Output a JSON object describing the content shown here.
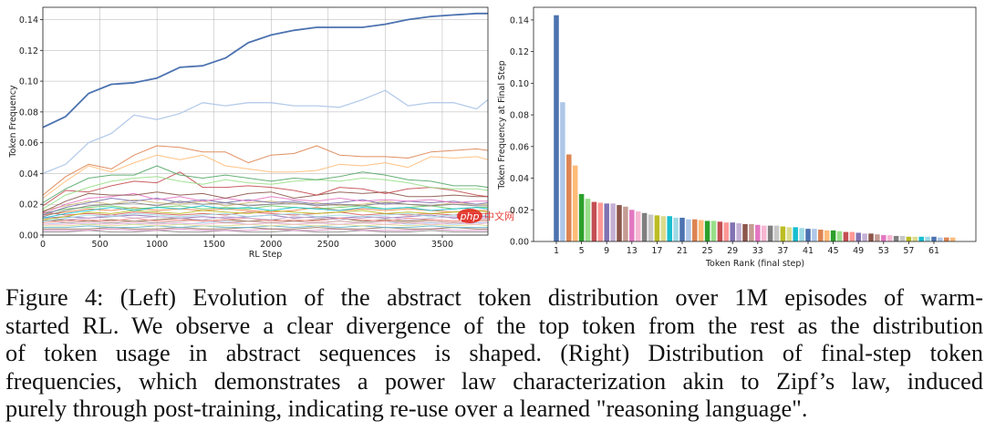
{
  "figure": {
    "left_chart": {
      "type": "line",
      "xlabel": "RL Step",
      "ylabel": "Token Frequency",
      "xlim": [
        0,
        3900
      ],
      "ylim": [
        0,
        0.148
      ],
      "x_ticks": [
        "0",
        "500",
        "1000",
        "1500",
        "2000",
        "2500",
        "3000",
        "3500"
      ],
      "y_ticks": [
        "0.00",
        "0.02",
        "0.04",
        "0.06",
        "0.08",
        "0.10",
        "0.12",
        "0.14"
      ],
      "grid": true
    },
    "right_chart": {
      "type": "bar",
      "xlabel": "Token Rank (final step)",
      "ylabel": "Token Frequency at Final Step",
      "ylim": [
        0,
        0.148
      ],
      "x_ticks": [
        "1",
        "5",
        "9",
        "13",
        "17",
        "21",
        "25",
        "29",
        "33",
        "37",
        "41",
        "45",
        "49",
        "53",
        "57",
        "61"
      ],
      "y_ticks": [
        "0.00",
        "0.02",
        "0.04",
        "0.06",
        "0.08",
        "0.10",
        "0.12",
        "0.14"
      ],
      "grid": false
    },
    "watermark": {
      "logo_text": "php",
      "site_text": "中文网"
    }
  },
  "chart_data": [
    {
      "type": "line",
      "xlabel": "RL Step",
      "ylabel": "Token Frequency",
      "xlim": [
        0,
        3900
      ],
      "ylim": [
        0,
        0.148
      ],
      "x": [
        0,
        200,
        400,
        600,
        800,
        1000,
        1200,
        1400,
        1600,
        1800,
        2000,
        2200,
        2400,
        2600,
        2800,
        3000,
        3200,
        3400,
        3600,
        3800,
        3900
      ],
      "series": [
        {
          "color": "#4c72b0",
          "values": [
            0.07,
            0.077,
            0.092,
            0.098,
            0.099,
            0.102,
            0.109,
            0.11,
            0.115,
            0.125,
            0.13,
            0.133,
            0.135,
            0.135,
            0.135,
            0.137,
            0.14,
            0.142,
            0.143,
            0.144,
            0.144
          ]
        },
        {
          "color": "#aec7e8",
          "values": [
            0.04,
            0.046,
            0.06,
            0.066,
            0.078,
            0.075,
            0.079,
            0.086,
            0.084,
            0.086,
            0.086,
            0.084,
            0.084,
            0.083,
            0.088,
            0.094,
            0.084,
            0.086,
            0.086,
            0.082,
            0.088
          ]
        },
        {
          "color": "#dd8452",
          "values": [
            0.026,
            0.038,
            0.046,
            0.043,
            0.052,
            0.058,
            0.057,
            0.054,
            0.054,
            0.047,
            0.052,
            0.053,
            0.058,
            0.052,
            0.051,
            0.051,
            0.05,
            0.054,
            0.055,
            0.056,
            0.055
          ]
        },
        {
          "color": "#ffbb78",
          "values": [
            0.024,
            0.035,
            0.045,
            0.041,
            0.047,
            0.052,
            0.049,
            0.052,
            0.045,
            0.043,
            0.041,
            0.041,
            0.042,
            0.046,
            0.045,
            0.047,
            0.044,
            0.051,
            0.05,
            0.051,
            0.049
          ]
        },
        {
          "color": "#55a868",
          "values": [
            0.021,
            0.03,
            0.037,
            0.039,
            0.039,
            0.045,
            0.039,
            0.037,
            0.039,
            0.037,
            0.035,
            0.037,
            0.036,
            0.038,
            0.041,
            0.039,
            0.036,
            0.035,
            0.032,
            0.032,
            0.031
          ]
        },
        {
          "color": "#98df8a",
          "values": [
            0.017,
            0.026,
            0.031,
            0.035,
            0.037,
            0.038,
            0.035,
            0.033,
            0.036,
            0.034,
            0.033,
            0.035,
            0.036,
            0.035,
            0.037,
            0.036,
            0.034,
            0.031,
            0.03,
            0.03,
            0.029
          ]
        },
        {
          "color": "#c44e52",
          "values": [
            0.019,
            0.029,
            0.028,
            0.032,
            0.035,
            0.034,
            0.041,
            0.031,
            0.031,
            0.032,
            0.031,
            0.029,
            0.026,
            0.031,
            0.03,
            0.027,
            0.03,
            0.031,
            0.029,
            0.026,
            0.025
          ]
        },
        {
          "color": "#8c564b",
          "values": [
            0.015,
            0.022,
            0.027,
            0.026,
            0.026,
            0.028,
            0.026,
            0.027,
            0.024,
            0.027,
            0.028,
            0.024,
            0.026,
            0.028,
            0.027,
            0.028,
            0.025,
            0.025,
            0.026,
            0.025,
            0.025
          ]
        },
        {
          "color": "#e377c2",
          "values": [
            0.014,
            0.02,
            0.024,
            0.025,
            0.027,
            0.023,
            0.025,
            0.022,
            0.024,
            0.022,
            0.025,
            0.023,
            0.022,
            0.024,
            0.022,
            0.023,
            0.022,
            0.023,
            0.021,
            0.022,
            0.022
          ]
        },
        {
          "color": "#8172b2",
          "values": [
            0.013,
            0.018,
            0.021,
            0.024,
            0.022,
            0.024,
            0.021,
            0.023,
            0.021,
            0.023,
            0.021,
            0.022,
            0.02,
            0.021,
            0.023,
            0.02,
            0.022,
            0.021,
            0.022,
            0.02,
            0.021
          ]
        },
        {
          "color": "#7f7f7f",
          "values": [
            0.012,
            0.016,
            0.019,
            0.02,
            0.021,
            0.019,
            0.022,
            0.02,
            0.021,
            0.019,
            0.02,
            0.021,
            0.019,
            0.02,
            0.019,
            0.021,
            0.02,
            0.019,
            0.02,
            0.019,
            0.019
          ]
        },
        {
          "color": "#17becf",
          "values": [
            0.011,
            0.014,
            0.016,
            0.018,
            0.016,
            0.018,
            0.017,
            0.019,
            0.017,
            0.018,
            0.016,
            0.018,
            0.017,
            0.016,
            0.018,
            0.017,
            0.018,
            0.016,
            0.017,
            0.018,
            0.017
          ]
        },
        {
          "color": "#bcbd22",
          "values": [
            0.01,
            0.012,
            0.015,
            0.014,
            0.016,
            0.015,
            0.014,
            0.016,
            0.015,
            0.014,
            0.016,
            0.015,
            0.014,
            0.015,
            0.016,
            0.014,
            0.015,
            0.014,
            0.015,
            0.016,
            0.015
          ]
        },
        {
          "color": "#9edae5",
          "values": [
            0.009,
            0.011,
            0.013,
            0.012,
            0.014,
            0.013,
            0.012,
            0.013,
            0.014,
            0.012,
            0.013,
            0.014,
            0.012,
            0.013,
            0.012,
            0.013,
            0.014,
            0.012,
            0.013,
            0.012,
            0.013
          ]
        },
        {
          "color": "#c5b0d5",
          "values": [
            0.012,
            0.01,
            0.011,
            0.013,
            0.011,
            0.012,
            0.011,
            0.01,
            0.012,
            0.011,
            0.01,
            0.012,
            0.011,
            0.01,
            0.011,
            0.012,
            0.01,
            0.011,
            0.012,
            0.011,
            0.011
          ]
        },
        {
          "color": "#ff9896",
          "values": [
            0.008,
            0.009,
            0.01,
            0.009,
            0.011,
            0.009,
            0.01,
            0.009,
            0.01,
            0.011,
            0.009,
            0.01,
            0.009,
            0.011,
            0.01,
            0.009,
            0.011,
            0.01,
            0.009,
            0.01,
            0.01
          ]
        },
        {
          "color": "#c49c94",
          "values": [
            0.01,
            0.008,
            0.009,
            0.008,
            0.009,
            0.008,
            0.009,
            0.01,
            0.008,
            0.009,
            0.008,
            0.009,
            0.008,
            0.009,
            0.008,
            0.009,
            0.008,
            0.009,
            0.008,
            0.009,
            0.009
          ]
        },
        {
          "color": "#f7b6d2",
          "values": [
            0.007,
            0.007,
            0.008,
            0.007,
            0.008,
            0.007,
            0.008,
            0.007,
            0.008,
            0.007,
            0.008,
            0.007,
            0.008,
            0.007,
            0.008,
            0.007,
            0.008,
            0.007,
            0.008,
            0.007,
            0.008
          ]
        },
        {
          "color": "#dbdb8d",
          "values": [
            0.006,
            0.006,
            0.007,
            0.006,
            0.007,
            0.006,
            0.007,
            0.006,
            0.006,
            0.007,
            0.006,
            0.007,
            0.006,
            0.007,
            0.006,
            0.007,
            0.006,
            0.007,
            0.006,
            0.007,
            0.006
          ]
        },
        {
          "color": "#64b5cd",
          "values": [
            0.005,
            0.005,
            0.006,
            0.005,
            0.005,
            0.006,
            0.005,
            0.006,
            0.005,
            0.005,
            0.006,
            0.005,
            0.006,
            0.005,
            0.006,
            0.005,
            0.005,
            0.006,
            0.005,
            0.005,
            0.005
          ]
        },
        {
          "color": "#937860",
          "values": [
            0.004,
            0.004,
            0.004,
            0.005,
            0.004,
            0.004,
            0.005,
            0.004,
            0.004,
            0.005,
            0.004,
            0.004,
            0.005,
            0.004,
            0.004,
            0.005,
            0.004,
            0.004,
            0.005,
            0.004,
            0.004
          ]
        },
        {
          "color": "#da8bc3",
          "values": [
            0.003,
            0.003,
            0.003,
            0.004,
            0.003,
            0.003,
            0.004,
            0.003,
            0.003,
            0.003,
            0.004,
            0.003,
            0.003,
            0.004,
            0.003,
            0.003,
            0.003,
            0.004,
            0.003,
            0.003,
            0.003
          ]
        },
        {
          "color": "#8c8c8c",
          "values": [
            0.002,
            0.002,
            0.003,
            0.002,
            0.002,
            0.003,
            0.002,
            0.002,
            0.003,
            0.002,
            0.002,
            0.003,
            0.002,
            0.002,
            0.003,
            0.002,
            0.002,
            0.003,
            0.002,
            0.002,
            0.002
          ]
        },
        {
          "color": "#ccb974",
          "values": [
            0.016,
            0.019,
            0.022,
            0.02,
            0.023,
            0.021,
            0.02,
            0.022,
            0.019,
            0.021,
            0.022,
            0.02,
            0.021,
            0.019,
            0.02,
            0.022,
            0.02,
            0.019,
            0.021,
            0.02,
            0.02
          ]
        },
        {
          "color": "#6acc64",
          "values": [
            0.014,
            0.017,
            0.018,
            0.019,
            0.017,
            0.018,
            0.019,
            0.017,
            0.018,
            0.017,
            0.019,
            0.018,
            0.017,
            0.018,
            0.019,
            0.017,
            0.018,
            0.019,
            0.017,
            0.018,
            0.018
          ]
        },
        {
          "color": "#ee854a",
          "values": [
            0.013,
            0.015,
            0.017,
            0.016,
            0.018,
            0.016,
            0.017,
            0.016,
            0.017,
            0.016,
            0.015,
            0.016,
            0.018,
            0.016,
            0.017,
            0.016,
            0.017,
            0.016,
            0.015,
            0.016,
            0.016
          ]
        },
        {
          "color": "#d65f5f",
          "values": [
            0.015,
            0.013,
            0.014,
            0.013,
            0.015,
            0.014,
            0.013,
            0.014,
            0.013,
            0.015,
            0.014,
            0.013,
            0.014,
            0.015,
            0.013,
            0.014,
            0.013,
            0.014,
            0.013,
            0.014,
            0.014
          ]
        },
        {
          "color": "#956cb4",
          "values": [
            0.011,
            0.012,
            0.011,
            0.012,
            0.013,
            0.012,
            0.011,
            0.012,
            0.011,
            0.012,
            0.013,
            0.011,
            0.012,
            0.011,
            0.012,
            0.011,
            0.012,
            0.013,
            0.011,
            0.012,
            0.012
          ]
        },
        {
          "color": "#8c613c",
          "values": [
            0.009,
            0.01,
            0.009,
            0.01,
            0.009,
            0.01,
            0.011,
            0.009,
            0.01,
            0.009,
            0.01,
            0.009,
            0.01,
            0.011,
            0.009,
            0.01,
            0.009,
            0.01,
            0.009,
            0.01,
            0.01
          ]
        },
        {
          "color": "#a1c9f4",
          "values": [
            0.007,
            0.008,
            0.007,
            0.008,
            0.007,
            0.008,
            0.007,
            0.008,
            0.009,
            0.007,
            0.008,
            0.007,
            0.008,
            0.007,
            0.008,
            0.009,
            0.007,
            0.008,
            0.007,
            0.008,
            0.008
          ]
        }
      ]
    },
    {
      "type": "bar",
      "xlabel": "Token Rank (final step)",
      "ylabel": "Token Frequency at Final Step",
      "ylim": [
        0,
        0.148
      ],
      "x": [
        1,
        2,
        3,
        4,
        5,
        6,
        7,
        8,
        9,
        10,
        11,
        12,
        13,
        14,
        15,
        16,
        17,
        18,
        19,
        20,
        21,
        22,
        23,
        24,
        25,
        26,
        27,
        28,
        29,
        30,
        31,
        32,
        33,
        34,
        35,
        36,
        37,
        38,
        39,
        40,
        41,
        42,
        43,
        44,
        45,
        46,
        47,
        48,
        49,
        50,
        51,
        52,
        53,
        54,
        55,
        56,
        57,
        58,
        59,
        60,
        61,
        62,
        63,
        64
      ],
      "values": [
        0.143,
        0.088,
        0.055,
        0.048,
        0.03,
        0.027,
        0.025,
        0.0245,
        0.024,
        0.024,
        0.023,
        0.022,
        0.02,
        0.019,
        0.018,
        0.017,
        0.0165,
        0.016,
        0.016,
        0.015,
        0.015,
        0.014,
        0.014,
        0.0135,
        0.013,
        0.013,
        0.0125,
        0.012,
        0.012,
        0.0115,
        0.011,
        0.011,
        0.0105,
        0.01,
        0.01,
        0.01,
        0.0095,
        0.009,
        0.009,
        0.0085,
        0.008,
        0.008,
        0.0075,
        0.007,
        0.007,
        0.0065,
        0.006,
        0.006,
        0.0055,
        0.005,
        0.005,
        0.0045,
        0.004,
        0.004,
        0.0035,
        0.0035,
        0.003,
        0.003,
        0.003,
        0.003,
        0.003,
        0.0025,
        0.0025,
        0.0025
      ],
      "colors": [
        "#4c72b0",
        "#aec7e8",
        "#dd8452",
        "#ffbb78",
        "#2ca02c",
        "#98df8a",
        "#c44e52",
        "#ff9896",
        "#8172b2",
        "#c5b0d5",
        "#8c564b",
        "#c49c94",
        "#e377c2",
        "#f7b6d2",
        "#7f7f7f",
        "#c7c7c7",
        "#bcbd22",
        "#dbdb8d",
        "#17becf",
        "#9edae5",
        "#4c72b0",
        "#aec7e8",
        "#dd8452",
        "#ffbb78",
        "#2ca02c",
        "#98df8a",
        "#c44e52",
        "#ff9896",
        "#8172b2",
        "#c5b0d5",
        "#8c564b",
        "#c49c94",
        "#e377c2",
        "#f7b6d2",
        "#7f7f7f",
        "#c7c7c7",
        "#bcbd22",
        "#dbdb8d",
        "#17becf",
        "#9edae5",
        "#4c72b0",
        "#aec7e8",
        "#dd8452",
        "#ffbb78",
        "#2ca02c",
        "#98df8a",
        "#c44e52",
        "#ff9896",
        "#8172b2",
        "#c5b0d5",
        "#8c564b",
        "#c49c94",
        "#e377c2",
        "#f7b6d2",
        "#7f7f7f",
        "#c7c7c7",
        "#bcbd22",
        "#dbdb8d",
        "#17becf",
        "#9edae5",
        "#4c72b0",
        "#aec7e8",
        "#dd8452",
        "#ffbb78"
      ]
    }
  ],
  "caption": {
    "lines": [
      "Figure 4: (Left) Evolution of the abstract token distribution over 1M episodes of warm-",
      "started RL. We observe a clear divergence of the top token from the rest as the distribution",
      "of token usage in abstract sequences is shaped. (Right) Distribution of final-step token",
      "frequencies, which demonstrates a power law characterization akin to Zipf’s law, induced",
      "purely through post-training, indicating re-use over a learned \"reasoning language\"."
    ]
  }
}
